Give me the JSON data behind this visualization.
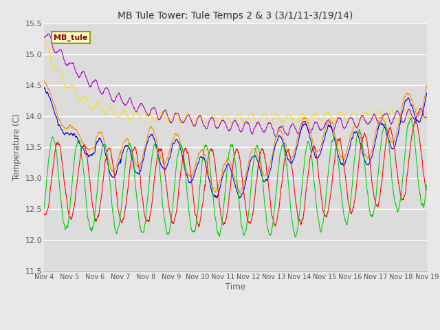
{
  "title": "MB Tule Tower: Tule Temps 2 & 3 (3/1/11-3/19/14)",
  "xlabel": "Time",
  "ylabel": "Temperature (C)",
  "ylim": [
    11.5,
    15.5
  ],
  "xlim": [
    4,
    19
  ],
  "xticks": [
    4,
    5,
    6,
    7,
    8,
    9,
    10,
    11,
    12,
    13,
    14,
    15,
    16,
    17,
    18,
    19
  ],
  "xtick_labels": [
    "Nov 4",
    "Nov 5",
    "Nov 6",
    "Nov 7",
    "Nov 8",
    "Nov 9",
    "Nov 10",
    "Nov 11",
    "Nov 12",
    "Nov 13",
    "Nov 14",
    "Nov 15",
    "Nov 16",
    "Nov 17",
    "Nov 18",
    "Nov 19"
  ],
  "yticks": [
    11.5,
    12.0,
    12.5,
    13.0,
    13.5,
    14.0,
    14.5,
    15.0,
    15.5
  ],
  "series_colors": {
    "Tul2_Tw+4": "#ff0000",
    "Tul2_Ts-2": "#ff8800",
    "Tul2_Ts-8": "#ffdd00",
    "Tul3_Tw+4": "#00cc00",
    "Tul3_Ts-2": "#0000dd",
    "Tul3_Ts-8": "#aa00bb"
  },
  "legend_label": "MB_tule",
  "fig_bg_color": "#e8e8e8",
  "plot_bg_color": "#dcdcdc",
  "grid_color": "#ffffff",
  "n_points": 2000
}
